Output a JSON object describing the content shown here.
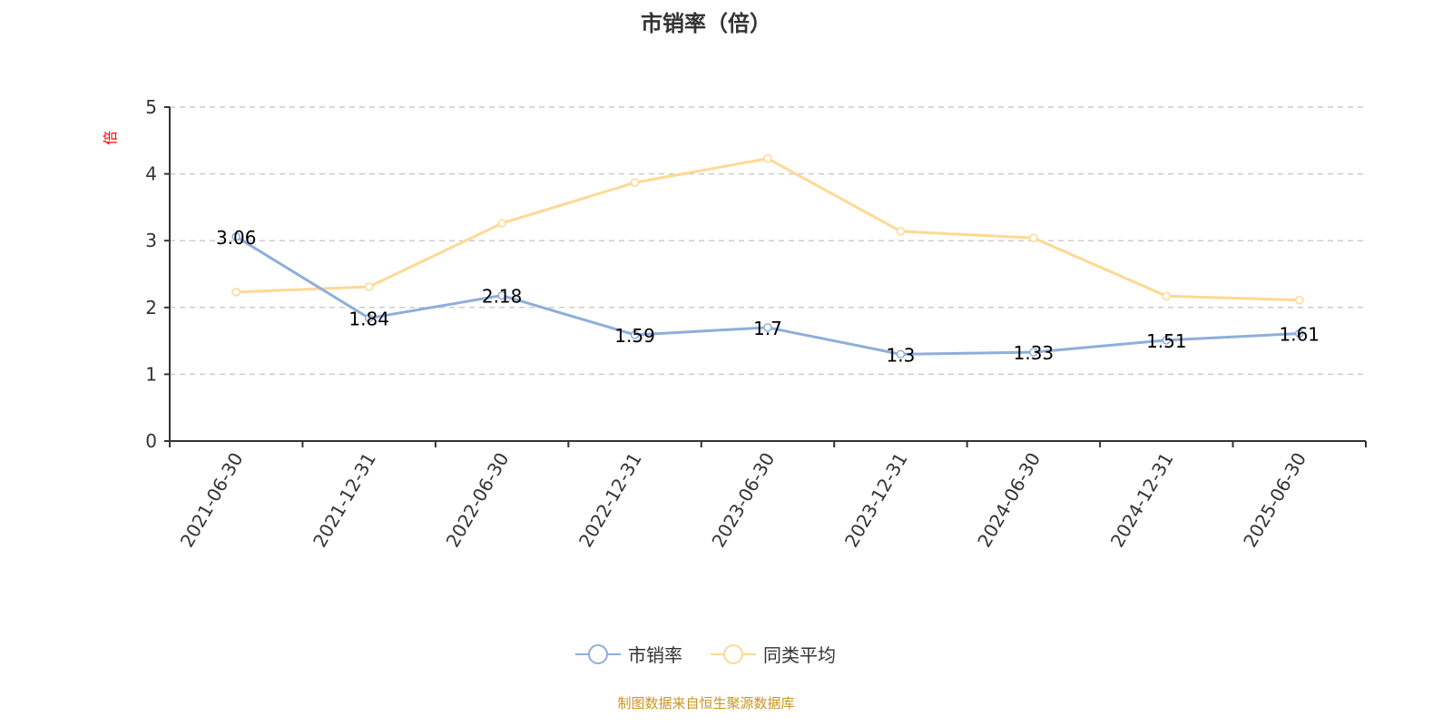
{
  "chart_data": {
    "type": "line",
    "title": "市销率（倍）",
    "ylabel": "倍",
    "ylim": [
      0,
      5
    ],
    "yticks": [
      0,
      1,
      2,
      3,
      4,
      5
    ],
    "grid": true,
    "legend_position": "bottom",
    "categories": [
      "2021-06-30",
      "2021-12-31",
      "2022-06-30",
      "2022-12-31",
      "2023-06-30",
      "2023-12-31",
      "2024-06-30",
      "2024-12-31",
      "2025-06-30"
    ],
    "series": [
      {
        "name": "市销率",
        "color": "#8eaedb",
        "values": [
          3.06,
          1.84,
          2.18,
          1.59,
          1.7,
          1.3,
          1.33,
          1.51,
          1.61
        ],
        "labels": [
          "3.06",
          "1.84",
          "2.18",
          "1.59",
          "1.7",
          "1.3",
          "1.33",
          "1.51",
          "1.61"
        ]
      },
      {
        "name": "同类平均",
        "color": "#fdd994",
        "values": [
          2.23,
          2.31,
          3.26,
          3.87,
          4.23,
          3.14,
          3.04,
          2.17,
          2.11
        ]
      }
    ]
  },
  "source": "制图数据来自恒生聚源数据库"
}
